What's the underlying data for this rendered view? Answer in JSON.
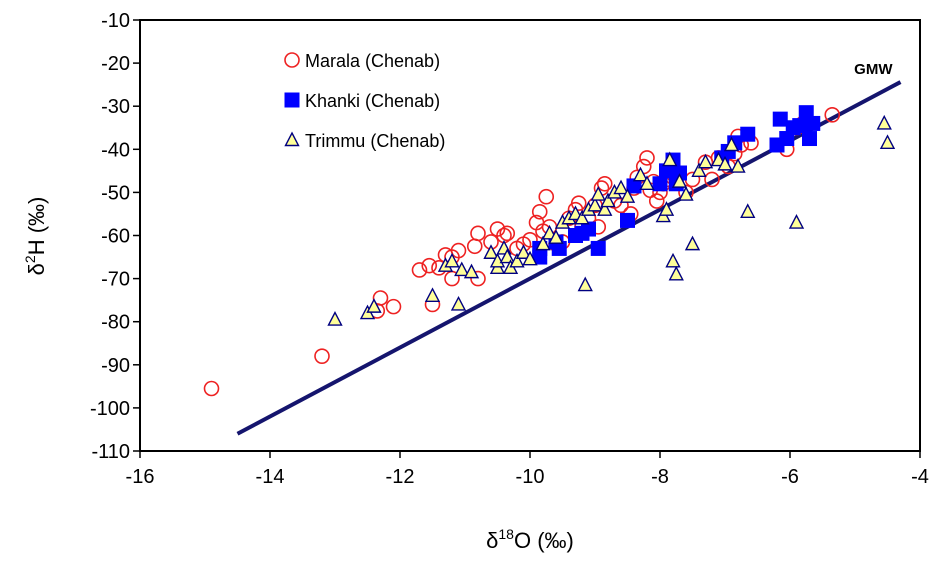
{
  "chart_data": {
    "type": "scatter",
    "x_label": [
      "δ",
      "18",
      "O (‰)"
    ],
    "y_label": [
      "δ",
      "2",
      "H (‰)"
    ],
    "xlim": [
      -16,
      -4
    ],
    "ylim": [
      -110,
      -10
    ],
    "xticks": [
      -16,
      -14,
      -12,
      -10,
      -8,
      -6,
      -4
    ],
    "yticks": [
      -10,
      -20,
      -30,
      -40,
      -50,
      -60,
      -70,
      -80,
      -90,
      -100,
      -110
    ],
    "legend": "top-left",
    "reference_line": {
      "name": "GMW",
      "color": "#15156e",
      "x": [
        -14.5,
        -4.3
      ],
      "values": [
        -106,
        -24.4
      ]
    },
    "series": [
      {
        "name": "Marala (Chenab)",
        "marker": "circle",
        "color": "#ee2222",
        "fill": "none",
        "x": [
          -14.9,
          -13.2,
          -12.3,
          -12.35,
          -12.1,
          -11.7,
          -11.55,
          -11.4,
          -11.3,
          -11.2,
          -11.1,
          -11.5,
          -11.2,
          -10.85,
          -10.8,
          -10.8,
          -10.6,
          -10.5,
          -10.4,
          -10.35,
          -10.2,
          -10.1,
          -10,
          -9.9,
          -9.85,
          -9.8,
          -9.75,
          -9.7,
          -9.6,
          -9.5,
          -9.4,
          -9.3,
          -9.25,
          -9.2,
          -9.1,
          -9,
          -8.95,
          -8.9,
          -8.85,
          -8.7,
          -8.6,
          -8.45,
          -8.4,
          -8.35,
          -8.25,
          -8.2,
          -8.15,
          -8.1,
          -8.05,
          -8,
          -7.95,
          -7.9,
          -7.8,
          -7.6,
          -7.5,
          -7.3,
          -7.2,
          -7.1,
          -6.95,
          -6.85,
          -6.8,
          -6.75,
          -6.6,
          -6.05,
          -5.9,
          -5.8,
          -5.35
        ],
        "values": [
          -95.5,
          -88,
          -74.5,
          -77.5,
          -76.5,
          -68,
          -67,
          -67.5,
          -64.5,
          -65,
          -63.5,
          -76,
          -70,
          -62.5,
          -59.5,
          -70,
          -61.5,
          -58.5,
          -60,
          -59.5,
          -63,
          -62,
          -61,
          -57,
          -54.5,
          -59,
          -51,
          -58,
          -62,
          -61.5,
          -56,
          -54,
          -52.5,
          -58,
          -56,
          -53,
          -58,
          -49,
          -48,
          -52,
          -53,
          -55,
          -49,
          -46.5,
          -44,
          -42,
          -49.5,
          -47.5,
          -52,
          -50,
          -48,
          -47,
          -46.5,
          -50,
          -47,
          -43,
          -47,
          -42,
          -44,
          -41,
          -37,
          -39,
          -38.5,
          -40,
          -35,
          -34,
          -32
        ]
      },
      {
        "name": "Khanki (Chenab)",
        "marker": "square",
        "color": "#0000ff",
        "fill": "#0000ff",
        "x": [
          -9.85,
          -9.85,
          -9.6,
          -9.55,
          -9.3,
          -9.2,
          -9.1,
          -8.95,
          -8.5,
          -8.4,
          -8,
          -7.9,
          -7.8,
          -7.75,
          -7.7,
          -7.05,
          -6.95,
          -6.85,
          -6.65,
          -6.2,
          -6.15,
          -6.05,
          -5.95,
          -5.85,
          -5.75,
          -5.7,
          -5.65
        ],
        "values": [
          -63,
          -65,
          -61.5,
          -63,
          -60,
          -59.5,
          -58.5,
          -63,
          -56.5,
          -48.5,
          -48,
          -45,
          -42.5,
          -48,
          -45.5,
          -42,
          -40.5,
          -38.5,
          -36.5,
          -39,
          -33,
          -37.5,
          -35,
          -34.5,
          -31.5,
          -37.5,
          -34
        ]
      },
      {
        "name": "Trimmu (Chenab)",
        "marker": "triangle",
        "color": "#000080",
        "fill": "#ffff99",
        "x": [
          -13,
          -12.5,
          -12.4,
          -11.5,
          -11.3,
          -11.2,
          -11.1,
          -11.05,
          -10.9,
          -10.6,
          -10.5,
          -10.5,
          -10.4,
          -10.35,
          -10.3,
          -10.2,
          -10.1,
          -10,
          -9.8,
          -9.7,
          -9.6,
          -9.5,
          -9.4,
          -9.3,
          -9.2,
          -9.15,
          -9.1,
          -9,
          -8.95,
          -8.85,
          -8.8,
          -8.7,
          -8.6,
          -8.5,
          -8.3,
          -8.2,
          -7.95,
          -7.9,
          -7.85,
          -7.8,
          -7.75,
          -7.7,
          -7.6,
          -7.5,
          -7.4,
          -7.3,
          -7.1,
          -7,
          -6.9,
          -6.8,
          -6.65,
          -5.9,
          -4.55,
          -4.5
        ],
        "values": [
          -79.5,
          -78,
          -76.5,
          -74,
          -67,
          -66,
          -76,
          -68,
          -68.5,
          -64,
          -67.5,
          -66,
          -63,
          -65,
          -67.5,
          -66,
          -64,
          -65.5,
          -62,
          -59.5,
          -60.5,
          -57,
          -56,
          -55,
          -56,
          -71.5,
          -54,
          -53,
          -50.5,
          -54,
          -52,
          -50,
          -49,
          -51,
          -46,
          -48,
          -55.5,
          -54,
          -42.5,
          -66,
          -69,
          -47.5,
          -50.5,
          -62,
          -45,
          -43,
          -42.5,
          -43.5,
          -39,
          -44,
          -54.5,
          -57,
          -34,
          -38.5
        ]
      }
    ]
  }
}
